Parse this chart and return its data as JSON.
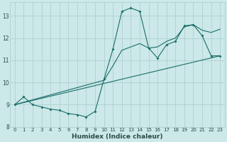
{
  "xlabel": "Humidex (Indice chaleur)",
  "background_color": "#cce8e8",
  "line_color": "#1a6e6a",
  "xlim": [
    -0.5,
    23.5
  ],
  "ylim": [
    8.0,
    13.6
  ],
  "yticks": [
    8,
    9,
    10,
    11,
    12,
    13
  ],
  "xticks": [
    0,
    1,
    2,
    3,
    4,
    5,
    6,
    7,
    8,
    9,
    10,
    11,
    12,
    13,
    14,
    15,
    16,
    17,
    18,
    19,
    20,
    21,
    22,
    23
  ],
  "curve1_x": [
    0,
    1,
    2,
    3,
    4,
    5,
    6,
    7,
    8,
    9,
    10,
    11,
    12,
    13,
    14,
    15,
    16,
    17,
    18,
    19,
    20,
    21,
    22,
    23
  ],
  "curve1_y": [
    9.0,
    9.35,
    9.0,
    8.9,
    8.8,
    8.75,
    8.6,
    8.55,
    8.45,
    8.7,
    10.15,
    11.5,
    13.2,
    13.35,
    13.2,
    11.55,
    11.1,
    11.7,
    11.85,
    12.55,
    12.6,
    12.1,
    11.2,
    11.2
  ],
  "curve2_x": [
    0,
    23
  ],
  "curve2_y": [
    9.0,
    11.2
  ],
  "curve3_x": [
    0,
    10,
    11,
    12,
    13,
    14,
    15,
    16,
    17,
    18,
    19,
    20,
    21,
    22,
    23
  ],
  "curve3_y": [
    9.0,
    10.1,
    10.75,
    11.45,
    11.6,
    11.75,
    11.55,
    11.6,
    11.85,
    12.0,
    12.5,
    12.6,
    12.35,
    12.25,
    12.4
  ],
  "grid_color": "#aacccc",
  "font_color": "#2a4a4a"
}
